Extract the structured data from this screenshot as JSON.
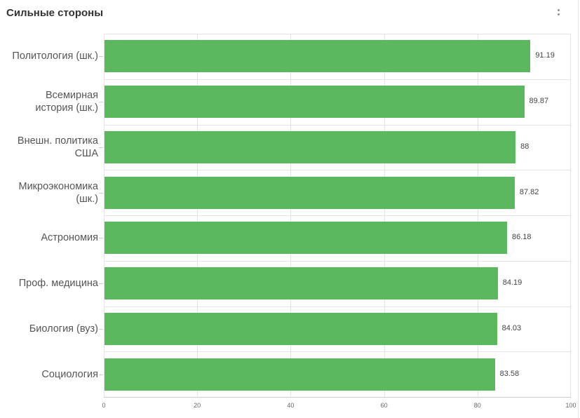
{
  "header": {
    "title": "Сильные стороны",
    "menu_icon": "vertical-ellipsis-icon"
  },
  "colors": {
    "bar": "#5cb85f",
    "grid": "#e3e3e3",
    "title": "#333333"
  },
  "chart_data": {
    "type": "bar",
    "orientation": "horizontal",
    "title": "Сильные стороны",
    "xlabel": "",
    "ylabel": "",
    "xlim": [
      0,
      100
    ],
    "x_ticks": [
      "0",
      "20",
      "40",
      "60",
      "80",
      "100"
    ],
    "grid": true,
    "legend": null,
    "categories": [
      "Политология (шк.)",
      "Всемирная история (шк.)",
      "Внешн. политика США",
      "Микроэкономика (шк.)",
      "Астрономия",
      "Проф. медицина",
      "Биология (вуз)",
      "Социология"
    ],
    "category_lines": [
      [
        "Политология (шк.)"
      ],
      [
        "Всемирная",
        "история (шк.)"
      ],
      [
        "Внешн. политика",
        "США"
      ],
      [
        "Микроэкономика",
        "(шк.)"
      ],
      [
        "Астрономия"
      ],
      [
        "Проф. медицина"
      ],
      [
        "Биология (вуз)"
      ],
      [
        "Социология"
      ]
    ],
    "values": [
      91.19,
      89.87,
      88,
      87.82,
      86.18,
      84.19,
      84.03,
      83.58
    ],
    "value_labels": [
      "91.19",
      "89.87",
      "88",
      "87.82",
      "86.18",
      "84.19",
      "84.03",
      "83.58"
    ]
  }
}
